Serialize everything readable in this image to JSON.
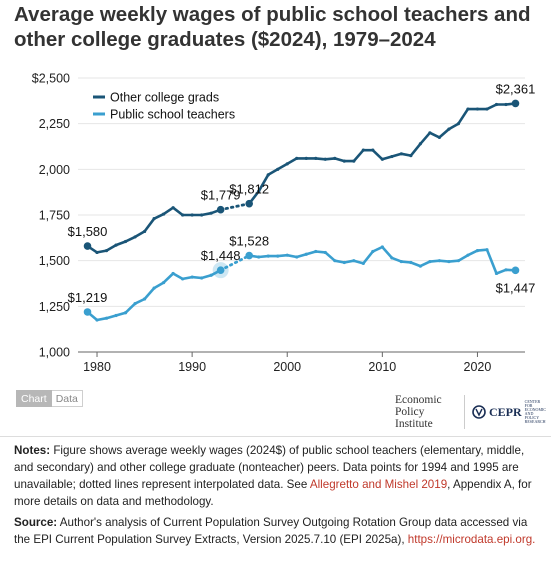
{
  "title": "Average weekly wages of public school teachers and other college graduates ($2024), 1979–2024",
  "toggle": {
    "chart_label": "Chart",
    "data_label": "Data"
  },
  "logos": {
    "epi_text": "Economic Policy Institute",
    "cepr_text": "CEPR",
    "cepr_small_text": "CENTER FOR ECONOMIC AND POLICY RESEARCH"
  },
  "notes": {
    "notes_label": "Notes:",
    "notes_text": "Figure shows average weekly wages (2024$) of public school teachers (elementary, middle, and secondary) and other college graduate (nonteacher) peers. Data points for 1994 and 1995 are unavailable; dotted lines represent interpolated data. See",
    "notes_link": "Allegretto and Mishel 2019",
    "notes_tail": ", Appendix A, for more details on data and methodology.",
    "source_label": "Source:",
    "source_text": "Author's analysis of Current Population Survey Outgoing Rotation Group data accessed via the EPI Current Population Survey Extracts, Version 2025.7.10 (EPI 2025a),",
    "source_link": "https://microdata.epi.org."
  },
  "colors": {
    "college": "#1a5577",
    "teachers": "#3a9fcf",
    "axis": "#666666",
    "grid": "#e6e6e6"
  },
  "chart_data": {
    "type": "line",
    "title": "",
    "xlabel": "",
    "ylabel": "",
    "xlim": [
      1978,
      2025
    ],
    "ylim": [
      1000,
      2500
    ],
    "x_ticks": [
      1980,
      1990,
      2000,
      2010,
      2020
    ],
    "x_tick_labels": [
      "1980",
      "1990",
      "2000",
      "2010",
      "2020"
    ],
    "y_ticks": [
      1000,
      1250,
      1500,
      1750,
      2000,
      2250,
      2500
    ],
    "y_tick_labels": [
      "1,000",
      "1,250",
      "1,500",
      "1,750",
      "2,000",
      "2,250",
      "$2,500"
    ],
    "legend_position": "top-left",
    "x": [
      1979,
      1980,
      1981,
      1982,
      1983,
      1984,
      1985,
      1986,
      1987,
      1988,
      1989,
      1990,
      1991,
      1992,
      1993,
      1994,
      1995,
      1996,
      1997,
      1998,
      1999,
      2000,
      2001,
      2002,
      2003,
      2004,
      2005,
      2006,
      2007,
      2008,
      2009,
      2010,
      2011,
      2012,
      2013,
      2014,
      2015,
      2016,
      2017,
      2018,
      2019,
      2020,
      2021,
      2022,
      2023,
      2024
    ],
    "interpolated_years": [
      1994,
      1995
    ],
    "series": [
      {
        "name": "Other college grads",
        "values": [
          1580,
          1545,
          1555,
          1585,
          1605,
          1630,
          1660,
          1730,
          1755,
          1790,
          1750,
          1750,
          1750,
          1760,
          1779,
          null,
          null,
          1812,
          1880,
          1970,
          2000,
          2030,
          2060,
          2060,
          2060,
          2055,
          2060,
          2045,
          2045,
          2105,
          2105,
          2055,
          2070,
          2085,
          2075,
          2140,
          2200,
          2175,
          2220,
          2250,
          2330,
          2330,
          2330,
          2355,
          2355,
          2361
        ],
        "point_labels": [
          {
            "x": 1979,
            "label": "$1,580"
          },
          {
            "x": 1993,
            "label": "$1,779"
          },
          {
            "x": 1996,
            "label": "$1,812"
          },
          {
            "x": 2024,
            "label": "$2,361"
          }
        ]
      },
      {
        "name": "Public school teachers",
        "values": [
          1219,
          1175,
          1185,
          1200,
          1215,
          1265,
          1290,
          1350,
          1380,
          1430,
          1400,
          1410,
          1405,
          1420,
          1448,
          null,
          null,
          1528,
          1520,
          1525,
          1525,
          1530,
          1520,
          1535,
          1550,
          1545,
          1500,
          1490,
          1500,
          1485,
          1550,
          1575,
          1515,
          1495,
          1490,
          1470,
          1495,
          1500,
          1495,
          1500,
          1530,
          1555,
          1560,
          1430,
          1450,
          1447
        ],
        "point_labels": [
          {
            "x": 1979,
            "label": "$1,219"
          },
          {
            "x": 1993,
            "label": "$1,448"
          },
          {
            "x": 1996,
            "label": "$1,528"
          },
          {
            "x": 2024,
            "label": "$1,447"
          }
        ]
      }
    ]
  }
}
